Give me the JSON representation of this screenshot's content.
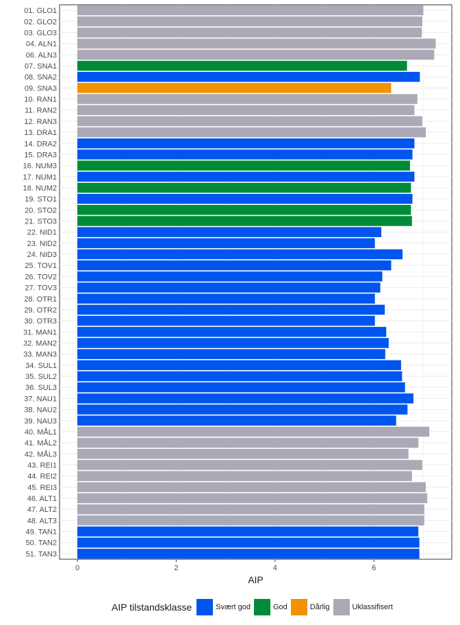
{
  "chart_data": {
    "type": "bar",
    "orientation": "horizontal",
    "title": "",
    "xlabel": "AIP",
    "ylabel": "",
    "xlim": [
      0,
      7.5
    ],
    "xticks": [
      0,
      2,
      4,
      6
    ],
    "grid": true,
    "legend_placement": "bottom",
    "legend_title": "AIP tilstandsklasse",
    "classes": [
      {
        "name": "Svært god",
        "color": "#0055EE"
      },
      {
        "name": "God",
        "color": "#008C37"
      },
      {
        "name": "Dårlig",
        "color": "#F39200"
      },
      {
        "name": "Uklassifisert",
        "color": "#ABA9B5"
      }
    ],
    "categories": [
      "01. GLO1",
      "02. GLO2",
      "03. GLO3",
      "04. ALN1",
      "06. ALN3",
      "07. SNA1",
      "08. SNA2",
      "09. SNA3",
      "10. RAN1",
      "11. RAN2",
      "12. RAN3",
      "13. DRA1",
      "14. DRA2",
      "15. DRA3",
      "16. NUM3",
      "17. NUM1",
      "18. NUM2",
      "19. STO1",
      "20. STO2",
      "21. STO3",
      "22. NID1",
      "23. NID2",
      "24. NID3",
      "25. TOV1",
      "26. TOV2",
      "27. TOV3",
      "28. OTR1",
      "29. OTR2",
      "30. OTR3",
      "31. MAN1",
      "32. MAN2",
      "33. MAN3",
      "34. SUL1",
      "35. SUL2",
      "36. SUL3",
      "37. NAU1",
      "38. NAU2",
      "39. NAU3",
      "40. MÅL1",
      "41. MÅL2",
      "42. MÅL3",
      "43. REI1",
      "44. REI2",
      "45. REI3",
      "46. ALT1",
      "47. ALT2",
      "48. ALT3",
      "49. TAN1",
      "50. TAN2",
      "51. TAN3"
    ],
    "values": [
      7.0,
      6.98,
      6.97,
      7.25,
      7.22,
      6.67,
      6.93,
      6.35,
      6.88,
      6.82,
      6.98,
      7.05,
      6.82,
      6.78,
      6.73,
      6.82,
      6.75,
      6.78,
      6.75,
      6.77,
      6.15,
      6.02,
      6.58,
      6.35,
      6.17,
      6.13,
      6.02,
      6.22,
      6.02,
      6.25,
      6.3,
      6.23,
      6.55,
      6.57,
      6.63,
      6.8,
      6.68,
      6.45,
      7.12,
      6.9,
      6.7,
      6.98,
      6.77,
      7.05,
      7.08,
      7.02,
      7.02,
      6.9,
      6.92,
      6.92
    ],
    "class_index": [
      3,
      3,
      3,
      3,
      3,
      1,
      0,
      2,
      3,
      3,
      3,
      3,
      0,
      0,
      1,
      0,
      1,
      0,
      1,
      1,
      0,
      0,
      0,
      0,
      0,
      0,
      0,
      0,
      0,
      0,
      0,
      0,
      0,
      0,
      0,
      0,
      0,
      0,
      3,
      3,
      3,
      3,
      3,
      3,
      3,
      3,
      3,
      0,
      0,
      0
    ]
  }
}
